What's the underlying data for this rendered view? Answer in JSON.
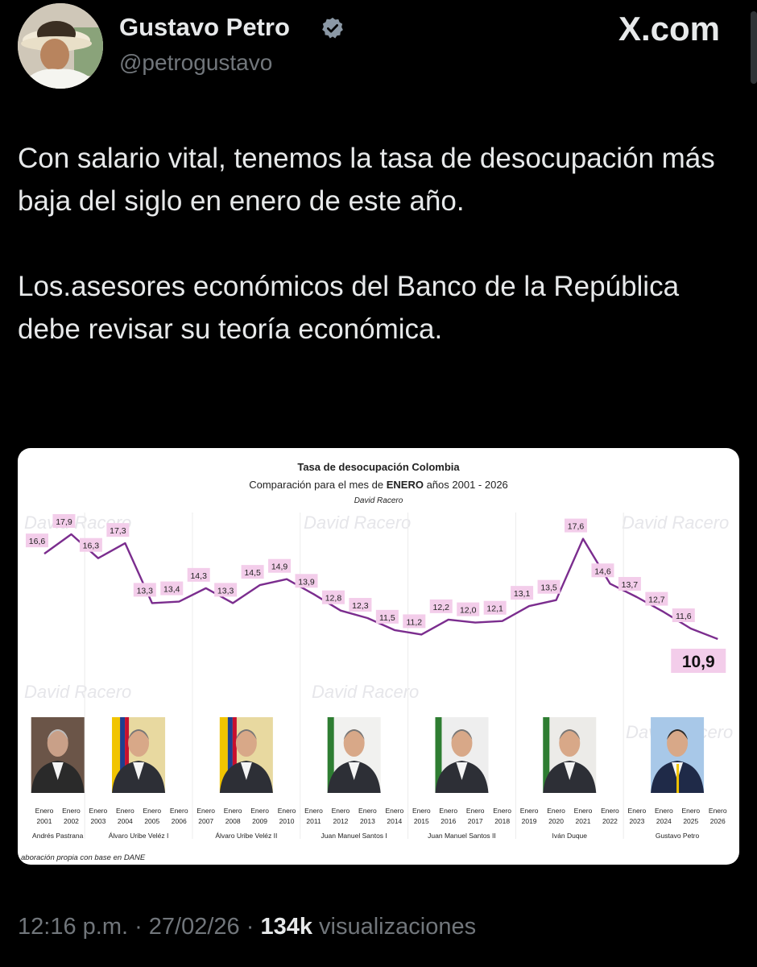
{
  "header": {
    "name": "Gustavo Petro",
    "handle": "@petrogustavo",
    "site": "X.com"
  },
  "tweet": {
    "para1": "Con salario vital, tenemos la tasa de desocupación más baja del siglo en enero de este año.",
    "para2": "Los.asesores económicos del Banco de la República debe  revisar su teoría económica."
  },
  "chart_data": {
    "type": "line",
    "title": "Tasa de desocupación Colombia",
    "subtitle_pre": "Comparación para el mes de ",
    "subtitle_bold": "ENERO",
    "subtitle_post": " años 2001 - 2026",
    "author": "David Racero",
    "watermark": "David Racero",
    "source": "aboración propia con base en DANE",
    "x_month": "Enero",
    "x": [
      "2001",
      "2002",
      "2003",
      "2004",
      "2005",
      "2006",
      "2007",
      "2008",
      "2009",
      "2010",
      "2011",
      "2012",
      "2013",
      "2014",
      "2015",
      "2016",
      "2017",
      "2018",
      "2019",
      "2020",
      "2021",
      "2022",
      "2023",
      "2024",
      "2025",
      "2026"
    ],
    "values": [
      16.6,
      17.9,
      16.3,
      17.3,
      13.3,
      13.4,
      14.3,
      13.3,
      14.5,
      14.9,
      13.9,
      12.8,
      12.3,
      11.5,
      11.2,
      12.2,
      12.0,
      12.1,
      13.1,
      13.5,
      17.6,
      14.6,
      13.7,
      12.7,
      11.6,
      10.9
    ],
    "labels": [
      "16,6",
      "17,9",
      "16,3",
      "17,3",
      "13,3",
      "13,4",
      "14,3",
      "13,3",
      "14,5",
      "14,9",
      "13,9",
      "12,8",
      "12,3",
      "11,5",
      "11,2",
      "12,2",
      "12,0",
      "12,1",
      "13,1",
      "13,5",
      "17,6",
      "14,6",
      "13,7",
      "12,7",
      "11,6",
      "10,9"
    ],
    "highlight_last": true,
    "line_color": "#7b2d8e",
    "highlight_bg": "#f3cdea",
    "periods": [
      {
        "name": "Andrés Pastrana",
        "start": 0,
        "end": 1
      },
      {
        "name": "Álvaro Uribe Veléz I",
        "start": 2,
        "end": 5
      },
      {
        "name": "Álvaro Uribe Veléz II",
        "start": 6,
        "end": 9
      },
      {
        "name": "Juan Manuel Santos I",
        "start": 10,
        "end": 13
      },
      {
        "name": "Juan Manuel Santos II",
        "start": 14,
        "end": 17
      },
      {
        "name": "Iván Duque",
        "start": 18,
        "end": 21
      },
      {
        "name": "Gustavo Petro",
        "start": 22,
        "end": 25
      }
    ]
  },
  "footer": {
    "time": "12:16 p.m. · 27/02/26 · ",
    "views": "134k",
    "views_label": " visualizaciones"
  }
}
